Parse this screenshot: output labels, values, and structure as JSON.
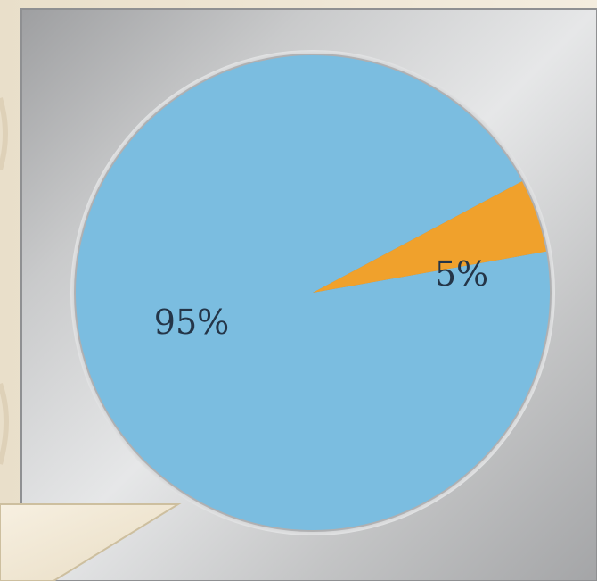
{
  "chart_data": {
    "type": "pie",
    "title": "",
    "slices": [
      {
        "label": "95%",
        "value": 95,
        "color": "#7bbde0"
      },
      {
        "label": "5%",
        "value": 5,
        "color": "#f0a12c"
      }
    ],
    "legend": "none",
    "start_angle_deg": -10,
    "direction": "clockwise"
  },
  "colors": {
    "page_background": "#efe6d4",
    "panel_metal": "#b6b7b8",
    "slice_main": "#7bbde0",
    "slice_small": "#f0a12c",
    "label_text": "#243548"
  }
}
